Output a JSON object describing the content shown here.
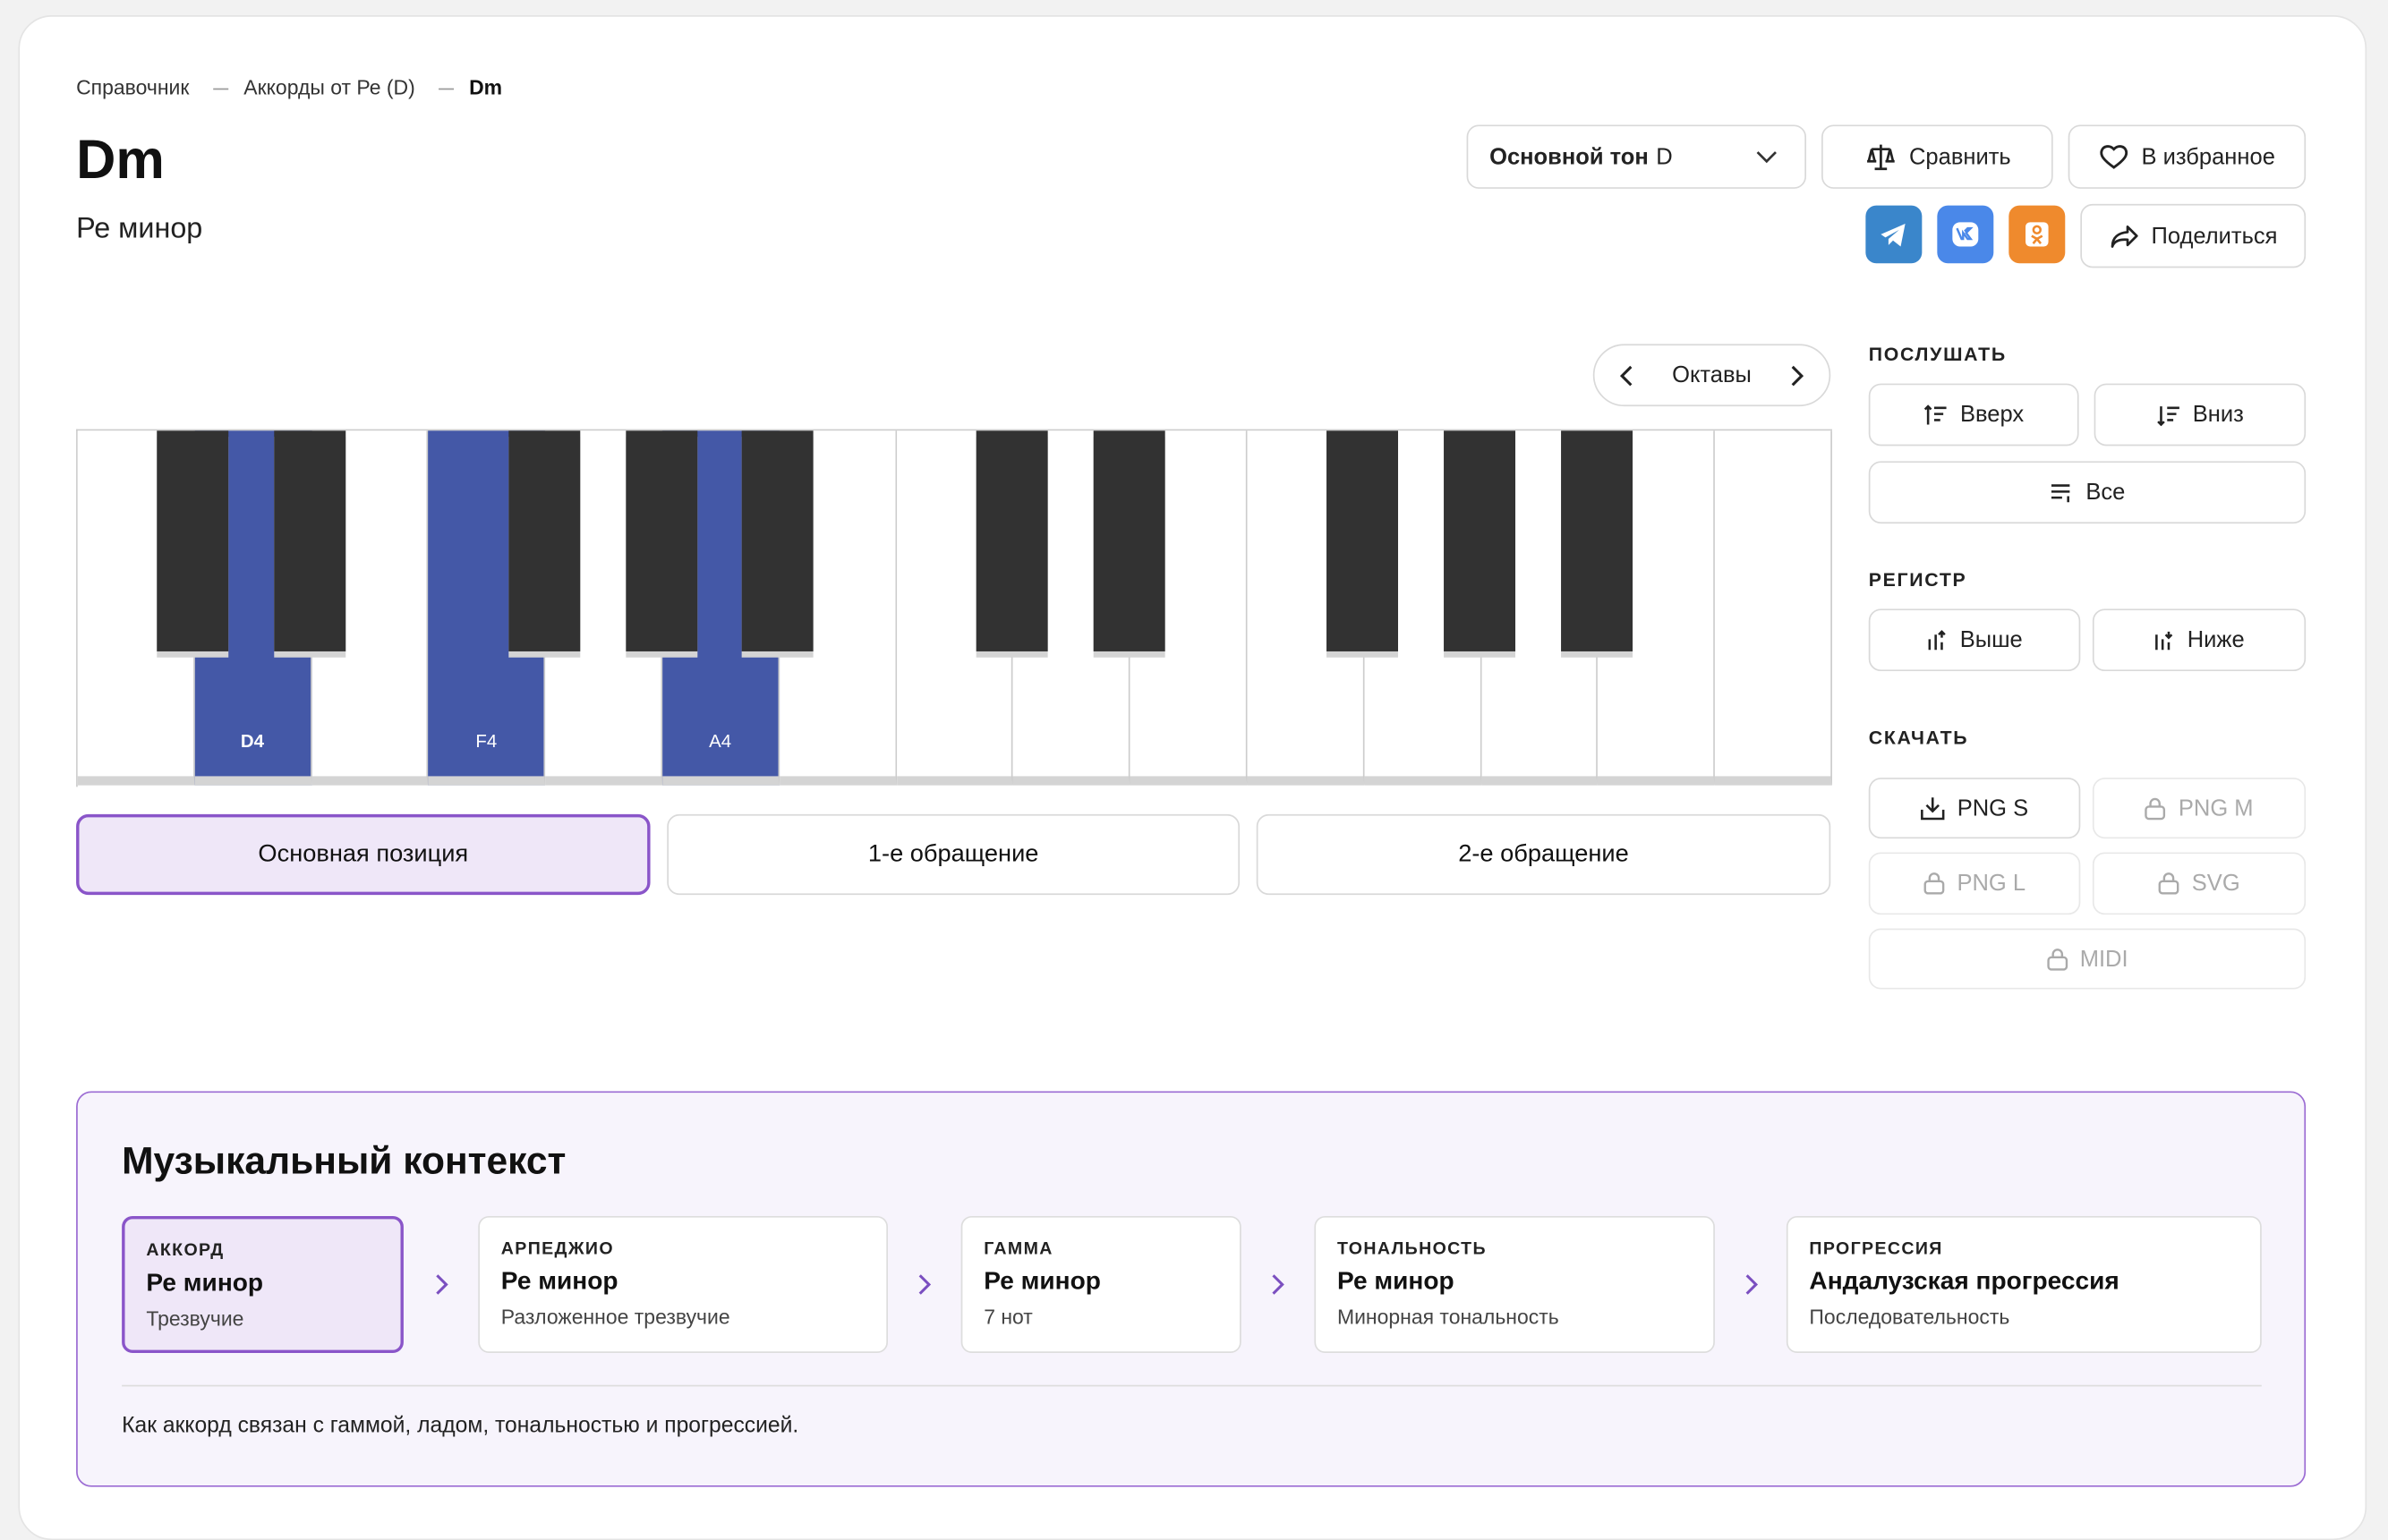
{
  "breadcrumb": [
    "Справочник",
    "Аккорды от Ре (D)",
    "Dm"
  ],
  "header": {
    "title": "Dm",
    "subtitle": "Ре минор"
  },
  "root_select": {
    "label": "Основной тон",
    "value": "D"
  },
  "actions": {
    "compare": "Сравнить",
    "favorite": "В избранное",
    "share": "Поделиться"
  },
  "octaves": "Октавы",
  "piano": {
    "highlighted": [
      "D4",
      "F4",
      "A4"
    ]
  },
  "inversions": [
    "Основная позиция",
    "1-е обращение",
    "2-е обращение"
  ],
  "listen": {
    "title": "ПОСЛУШАТЬ",
    "buttons": [
      "Вверх",
      "Вниз",
      "Все"
    ]
  },
  "register": {
    "title": "РЕГИСТР",
    "buttons": [
      "Выше",
      "Ниже"
    ]
  },
  "download": {
    "title": "СКАЧАТЬ",
    "buttons": [
      "PNG S",
      "PNG M",
      "PNG L",
      "SVG",
      "MIDI"
    ]
  },
  "context": {
    "title": "Музыкальный контекст",
    "cards": [
      {
        "kind": "АККОРД",
        "name": "Ре минор",
        "desc": "Трезвучие"
      },
      {
        "kind": "АРПЕДЖИО",
        "name": "Ре минор",
        "desc": "Разложенное трезвучие"
      },
      {
        "kind": "ГАММА",
        "name": "Ре минор",
        "desc": "7 нот"
      },
      {
        "kind": "ТОНАЛЬНОСТЬ",
        "name": "Ре минор",
        "desc": "Минорная тональность"
      },
      {
        "kind": "ПРОГРЕССИЯ",
        "name": "Андалузская прогрессия",
        "desc": "Последовательность"
      }
    ],
    "note": "Как аккорд связан с гаммой, ладом, тональностью и прогрессией."
  }
}
